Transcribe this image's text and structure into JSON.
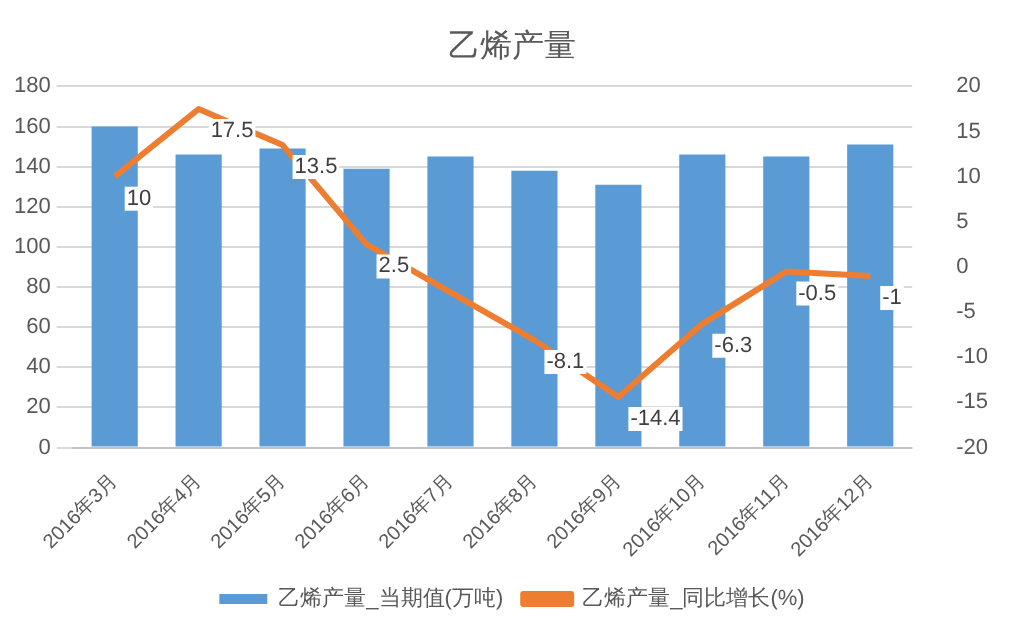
{
  "chart_data": {
    "type": "bar",
    "title": "乙烯产量",
    "categories": [
      "2016年3月",
      "2016年4月",
      "2016年5月",
      "2016年6月",
      "2016年7月",
      "2016年8月",
      "2016年9月",
      "2016年10月",
      "2016年11月",
      "2016年12月"
    ],
    "series": [
      {
        "name": "乙烯产量_当期值(万吨)",
        "color": "#5b9bd5",
        "values": [
          160,
          146,
          149,
          139,
          145,
          138,
          131,
          146,
          145,
          151
        ]
      },
      {
        "name": "乙烯产量_同比增长(%)",
        "type": "line",
        "axis": "y2",
        "color": "#ed7d31",
        "marker": "none",
        "values": [
          10,
          17.5,
          13.5,
          2.5,
          null,
          -8.1,
          -14.4,
          -6.3,
          -0.5,
          -1
        ],
        "value_labels": [
          "10",
          "17.5",
          "13.5",
          "2.5",
          null,
          "-8.1",
          "-14.4",
          "-6.3",
          "-0.5",
          "-1"
        ]
      }
    ],
    "ylim": [
      0,
      180
    ],
    "yticks": [
      0,
      20,
      40,
      60,
      80,
      100,
      120,
      140,
      160,
      180
    ],
    "y2lim": [
      -20,
      20
    ],
    "y2ticks": [
      -20,
      -15,
      -10,
      -5,
      0,
      5,
      10,
      15,
      20
    ],
    "grid": "y",
    "legend": "bottom"
  }
}
